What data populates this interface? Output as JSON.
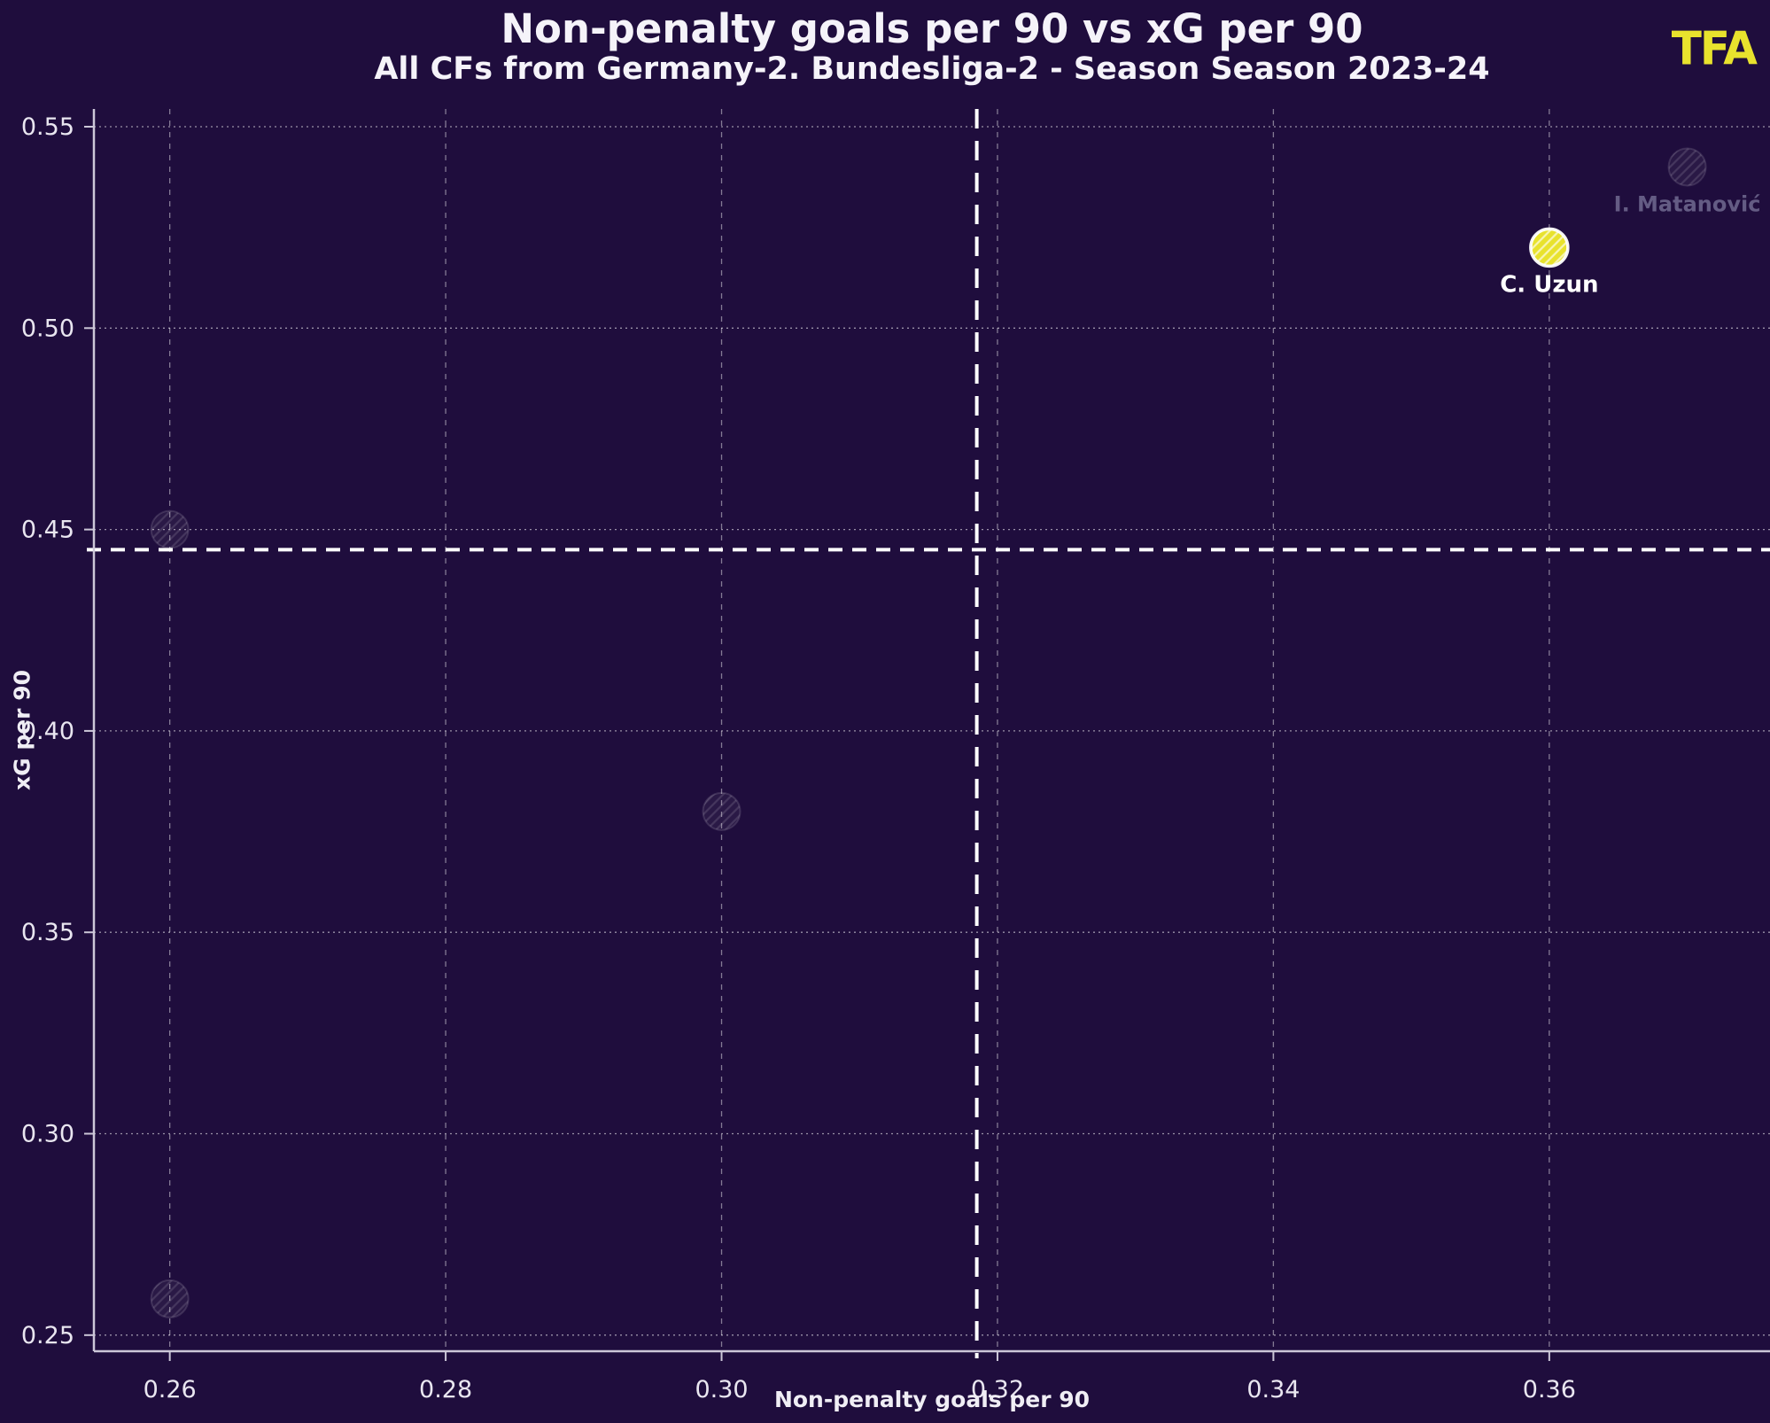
{
  "header": {
    "title": "Non-penalty goals per 90 vs xG per 90",
    "subtitle": "All CFs from Germany-2. Bundesliga-2 - Season Season 2023-24",
    "logo_text": "TFA"
  },
  "colors": {
    "background": "#1f0d3d",
    "accent_yellow": "#e8e22d",
    "text": "#ffffff",
    "dim_label": "#645c84",
    "spine": "#ccc7d8",
    "grid": "#ffffff"
  },
  "chart_data": {
    "type": "scatter",
    "title": "Non-penalty goals per 90 vs xG per 90",
    "subtitle": "All CFs from Germany-2. Bundesliga-2 - Season Season 2023-24",
    "xlabel": "Non-penalty goals per 90",
    "ylabel": "xG per 90",
    "xlim": [
      0.2545,
      0.376
    ],
    "ylim": [
      0.246,
      0.5544
    ],
    "xticks": [
      0.26,
      0.28,
      0.3,
      0.32,
      0.34,
      0.36
    ],
    "yticks": [
      0.25,
      0.3,
      0.35,
      0.4,
      0.45,
      0.5,
      0.55
    ],
    "grid": true,
    "legend": "none",
    "mean_lines": {
      "x": 0.3185,
      "y": 0.445
    },
    "points": [
      {
        "label": "",
        "x": 0.26,
        "y": 0.45,
        "highlighted": false,
        "show_label": false
      },
      {
        "label": "",
        "x": 0.3,
        "y": 0.38,
        "highlighted": false,
        "show_label": false
      },
      {
        "label": "",
        "x": 0.26,
        "y": 0.259,
        "highlighted": false,
        "show_label": false
      },
      {
        "label": "C. Uzun",
        "x": 0.36,
        "y": 0.52,
        "highlighted": true,
        "show_label": true
      },
      {
        "label": "I. Matanović",
        "x": 0.37,
        "y": 0.54,
        "highlighted": false,
        "show_label": true
      }
    ]
  }
}
